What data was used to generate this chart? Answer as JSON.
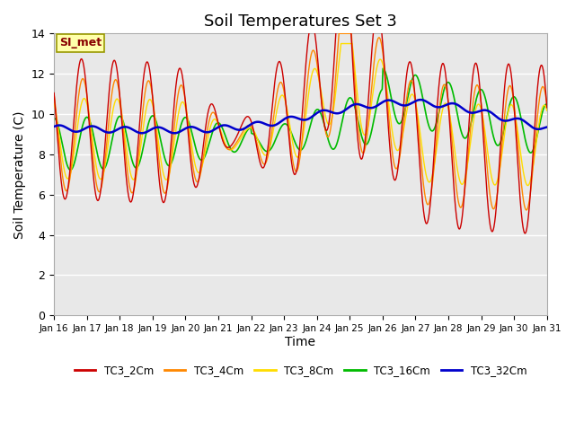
{
  "title": "Soil Temperatures Set 3",
  "xlabel": "Time",
  "ylabel": "Soil Temperature (C)",
  "annotation": "SI_met",
  "ylim": [
    0,
    14
  ],
  "xlim": [
    0,
    360
  ],
  "x_tick_labels": [
    "Jan 16",
    "Jan 17",
    "Jan 18",
    "Jan 19",
    "Jan 20",
    "Jan 21",
    "Jan 22",
    "Jan 23",
    "Jan 24",
    "Jan 25",
    "Jan 26",
    "Jan 27",
    "Jan 28",
    "Jan 29",
    "Jan 30",
    "Jan 31"
  ],
  "series_colors": {
    "TC3_2Cm": "#cc0000",
    "TC3_4Cm": "#ff8800",
    "TC3_8Cm": "#ffdd00",
    "TC3_16Cm": "#00bb00",
    "TC3_32Cm": "#0000cc"
  },
  "background_color": "#ffffff",
  "plot_bg_color": "#e8e8e8",
  "title_fontsize": 13,
  "axis_label_fontsize": 10,
  "grid_color": "#ffffff",
  "annotation_bg": "#ffffaa",
  "annotation_border": "#999900",
  "annotation_text_color": "#880000",
  "yticks": [
    0,
    2,
    4,
    6,
    8,
    10,
    12,
    14
  ]
}
